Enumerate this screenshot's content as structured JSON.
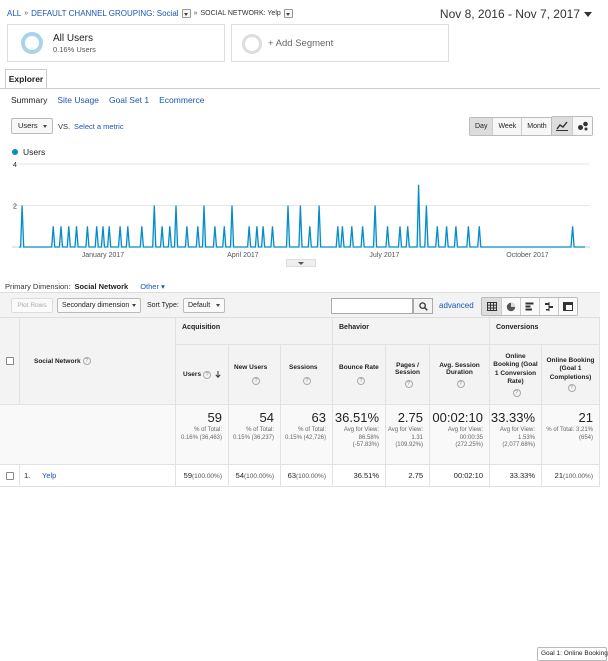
{
  "breadcrumb": {
    "root": "ALL",
    "level1": "DEFAULT CHANNEL GROUPING: Social",
    "level2": "SOCIAL NETWORK: Yelp"
  },
  "date_range": "Nov 8, 2016 - Nov 7, 2017",
  "segments": {
    "all_users_title": "All Users",
    "all_users_pct": "0.16% Users",
    "add_segment": "+ Add Segment"
  },
  "tabs": {
    "explorer": "Explorer"
  },
  "subtabs": [
    "Summary",
    "Site Usage",
    "Goal Set 1",
    "Ecommerce"
  ],
  "metric": {
    "selected": "Users",
    "vs": "VS.",
    "select_metric": "Select a metric"
  },
  "granularity": [
    "Day",
    "Week",
    "Month"
  ],
  "chart_data": {
    "type": "line",
    "series": [
      {
        "name": "Users",
        "color": "#058dc7"
      }
    ],
    "ylim": [
      0,
      4
    ],
    "yticks": [
      "4",
      "2"
    ],
    "x_labels": [
      "January 2017",
      "April 2017",
      "July 2017",
      "October 2017"
    ],
    "x": [
      "Nov 10, 2016",
      "Nov 30, 2016",
      "Dec 5, 2016",
      "Dec 10, 2016",
      "Dec 15, 2016",
      "Dec 22, 2016",
      "Dec 28, 2016",
      "Jan 1, 2017",
      "Jan 5, 2017",
      "Jan 12, 2017",
      "Jan 17, 2017",
      "Jan 26, 2017",
      "Feb 3, 2017",
      "Feb 8, 2017",
      "Feb 13, 2017",
      "Feb 17, 2017",
      "Feb 24, 2017",
      "Mar 3, 2017",
      "Mar 7, 2017",
      "Mar 14, 2017",
      "Mar 20, 2017",
      "Mar 25, 2017",
      "Apr 5, 2017",
      "Apr 10, 2017",
      "Apr 14, 2017",
      "Apr 20, 2017",
      "Apr 30, 2017",
      "May 8, 2017",
      "May 14, 2017",
      "May 20, 2017",
      "Jun 1, 2017",
      "Jun 4, 2017",
      "Jun 10, 2017",
      "Jun 17, 2017",
      "Jun 25, 2017",
      "Jul 3, 2017",
      "Jul 11, 2017",
      "Jul 16, 2017",
      "Jul 23, 2017",
      "Jul 28, 2017",
      "Aug 4, 2017",
      "Aug 10, 2017",
      "Aug 16, 2017",
      "Aug 24, 2017",
      "Aug 31, 2017",
      "Oct 30, 2017"
    ],
    "values": [
      2,
      1,
      1,
      1,
      1,
      1,
      1,
      1,
      1,
      1,
      1,
      1,
      2,
      1,
      1,
      2,
      1,
      1,
      2,
      1,
      1,
      2,
      1,
      1,
      1,
      1,
      2,
      2,
      1,
      2,
      1,
      1,
      1,
      1,
      2,
      1,
      1,
      1,
      3,
      2,
      1,
      1,
      1,
      1,
      1,
      1
    ]
  },
  "primary_dimension": {
    "label": "Primary Dimension:",
    "current": "Social Network",
    "other": "Other"
  },
  "toolbar": {
    "plot_rows": "Plot Rows",
    "secondary_dimension": "Secondary dimension",
    "sort_type_label": "Sort Type:",
    "sort_type": "Default",
    "advanced": "advanced"
  },
  "table": {
    "group_acquisition": "Acquisition",
    "group_behavior": "Behavior",
    "group_conversions": "Conversions",
    "goal_select": "Goal 1: Online Booking",
    "col_dimension": "Social Network",
    "col_users": "Users",
    "col_new_users": "New Users",
    "col_sessions": "Sessions",
    "col_bounce": "Bounce Rate",
    "col_pages": "Pages / Session",
    "col_duration": "Avg. Session Duration",
    "col_conv_rate": "Online Booking (Goal 1 Conversion Rate)",
    "col_completions": "Online Booking (Goal 1 Completions)",
    "totals": {
      "users": "59",
      "users_sub": "% of Total: 0.16% (36,463)",
      "new_users": "54",
      "new_users_sub": "% of Total: 0.15% (36,237)",
      "sessions": "63",
      "sessions_sub": "% of Total: 0.15% (42,726)",
      "bounce": "36.51%",
      "bounce_sub": "Avg for View: 86.58% (-57.83%)",
      "pages": "2.75",
      "pages_sub": "Avg for View: 1.31 (109.92%)",
      "duration": "00:02:10",
      "duration_sub": "Avg for View: 00:00:35 (272.25%)",
      "conv_rate": "33.33%",
      "conv_rate_sub": "Avg for View: 1.53% (2,077.68%)",
      "completions": "21",
      "completions_sub": "% of Total: 3.21% (654)"
    },
    "row1": {
      "index": "1.",
      "name": "Yelp",
      "users": "59",
      "users_pct": "(100.00%)",
      "new_users": "54",
      "new_users_pct": "(100.00%)",
      "sessions": "63",
      "sessions_pct": "(100.00%)",
      "bounce": "36.51%",
      "pages": "2.75",
      "duration": "00:02:10",
      "conv_rate": "33.33%",
      "completions": "21",
      "completions_pct": "(100.00%)"
    }
  }
}
